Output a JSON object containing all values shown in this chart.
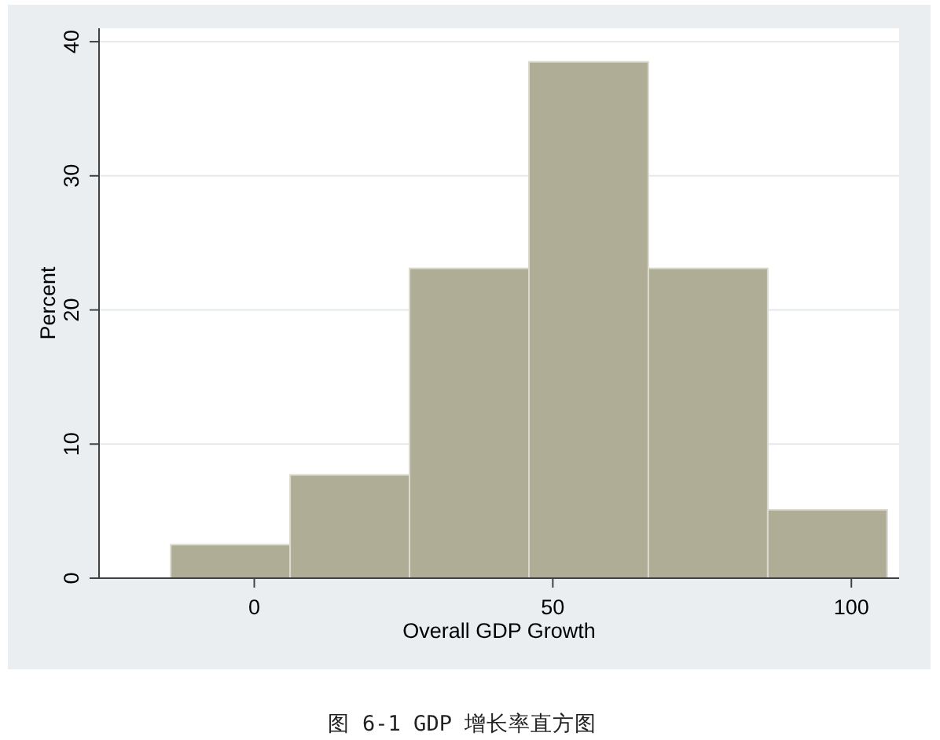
{
  "chart_data": {
    "type": "histogram",
    "xlabel": "Overall GDP Growth",
    "ylabel": "Percent",
    "annotations": [
      "图 6-1 GDP 增长率直方图"
    ],
    "bins": [
      -14,
      6,
      26,
      46,
      66,
      86,
      106
    ],
    "values": [
      2.5,
      7.7,
      23.1,
      38.5,
      23.1,
      5.1
    ],
    "color": "#b0ad96",
    "xlim": [
      -26,
      108
    ],
    "ylim": [
      0,
      41
    ],
    "xticks": [
      0,
      50,
      100
    ],
    "yticks": [
      0,
      10,
      20,
      30,
      40
    ],
    "grid": "y"
  }
}
